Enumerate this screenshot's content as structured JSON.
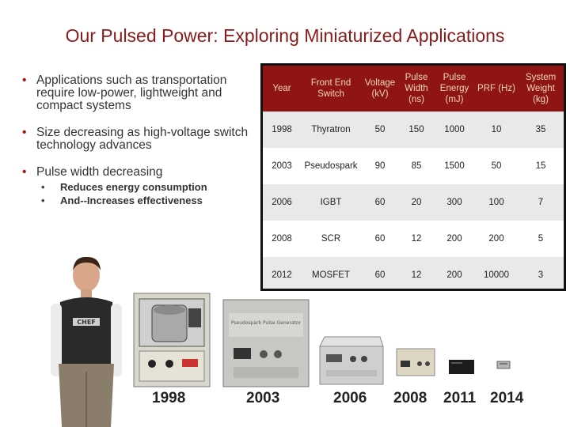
{
  "title": "Our Pulsed Power: Exploring Miniaturized Applications",
  "bullets": {
    "b1": "Applications such as transportation require low-power, lightweight and compact systems",
    "b2": "Size decreasing as high-voltage switch technology advances",
    "b3": "Pulse width decreasing",
    "sub1": "Reduces energy consumption",
    "sub2": "And--Increases effectiveness"
  },
  "table": {
    "headers": [
      "Year",
      "Front End Switch",
      "Voltage (kV)",
      "Pulse Width (ns)",
      "Pulse Energy (mJ)",
      "PRF (Hz)",
      "System Weight (kg)"
    ],
    "rows": [
      [
        "1998",
        "Thyratron",
        "50",
        "150",
        "1000",
        "10",
        "35"
      ],
      [
        "2003",
        "Pseudospark",
        "90",
        "85",
        "1500",
        "50",
        "15"
      ],
      [
        "2006",
        "IGBT",
        "60",
        "20",
        "300",
        "100",
        "7"
      ],
      [
        "2008",
        "SCR",
        "60",
        "12",
        "200",
        "200",
        "5"
      ],
      [
        "2012",
        "MOSFET",
        "60",
        "12",
        "200",
        "10000",
        "3"
      ]
    ]
  },
  "photo_years": [
    "1998",
    "2003",
    "2006",
    "2008",
    "2011",
    "2014"
  ],
  "photo_texts": {
    "shirt_logo": "CHEF",
    "device2003_label": "Pseudospark Pulse Generator"
  },
  "colors": {
    "title": "#8b1a1a",
    "table_header_bg": "#8f1515",
    "table_header_text": "#f1d5b7",
    "alt_row": "#e9e9e9"
  }
}
